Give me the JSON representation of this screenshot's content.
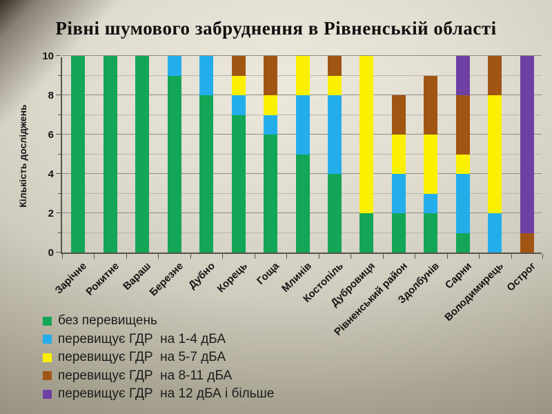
{
  "title": "Рівні шумового забруднення в Рівненській області",
  "chart_data": {
    "type": "bar",
    "stacked": true,
    "title": "Рівні шумового забруднення в Рівненській області",
    "xlabel": "",
    "ylabel": "Кількість досліджень",
    "ylim": [
      0,
      10
    ],
    "yticks": [
      0,
      2,
      4,
      6,
      8,
      10
    ],
    "grid": true,
    "legend_position": "bottom-left",
    "categories": [
      "Зарічне",
      "Рокитне",
      "Вараш",
      "Березне",
      "Дубно",
      "Корець",
      "Гоща",
      "Млинів",
      "Костопіль",
      "Дубровиця",
      "Рівненський район",
      "Здолбунів",
      "Сарни",
      "Володимирець",
      "Острог"
    ],
    "series": [
      {
        "name": "без перевищень",
        "color": "#13a656",
        "values": [
          10,
          10,
          10,
          9,
          8,
          7,
          6,
          5,
          4,
          2,
          2,
          2,
          1,
          0,
          0
        ]
      },
      {
        "name": "перевищує ГДР  на 1-4 дБА",
        "color": "#23aeeb",
        "values": [
          0,
          0,
          0,
          1,
          2,
          1,
          1,
          3,
          4,
          0,
          2,
          1,
          3,
          2,
          0
        ]
      },
      {
        "name": "перевищує ГДР  на 5-7 дБА",
        "color": "#fcf001",
        "values": [
          0,
          0,
          0,
          0,
          0,
          1,
          1,
          2,
          1,
          8,
          2,
          3,
          1,
          6,
          0
        ]
      },
      {
        "name": "перевищує ГДР  на 8-11 дБА",
        "color": "#a15513",
        "values": [
          0,
          0,
          0,
          0,
          0,
          1,
          2,
          0,
          1,
          0,
          2,
          3,
          3,
          2,
          1
        ]
      },
      {
        "name": "перевищує ГДР  на 12 дБА і більше",
        "color": "#6e40a4",
        "values": [
          0,
          0,
          0,
          0,
          0,
          0,
          0,
          0,
          0,
          0,
          0,
          0,
          2,
          0,
          9
        ]
      }
    ]
  }
}
